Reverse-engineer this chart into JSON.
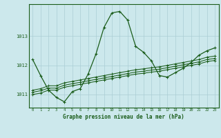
{
  "xlabel": "Graphe pression niveau de la mer (hPa)",
  "background_color": "#cce8ec",
  "grid_color": "#aacdd4",
  "line_color": "#1a5c1a",
  "x_data": [
    0,
    1,
    2,
    3,
    4,
    5,
    6,
    7,
    8,
    9,
    10,
    11,
    12,
    13,
    14,
    15,
    16,
    17,
    18,
    19,
    20,
    21,
    22,
    23
  ],
  "series1": [
    1012.2,
    1011.65,
    1011.15,
    1010.9,
    1010.75,
    1011.1,
    1011.2,
    1011.7,
    1012.4,
    1013.3,
    1013.8,
    1013.85,
    1013.55,
    1012.65,
    1012.45,
    1012.15,
    1011.65,
    1011.6,
    1011.75,
    1011.9,
    1012.1,
    1012.35,
    1012.5,
    1012.6
  ],
  "series2": [
    1011.15,
    1011.2,
    1011.3,
    1011.3,
    1011.4,
    1011.45,
    1011.5,
    1011.55,
    1011.6,
    1011.65,
    1011.7,
    1011.75,
    1011.8,
    1011.85,
    1011.88,
    1011.92,
    1011.95,
    1012.0,
    1012.05,
    1012.1,
    1012.15,
    1012.2,
    1012.28,
    1012.32
  ],
  "series3": [
    1011.08,
    1011.13,
    1011.22,
    1011.22,
    1011.32,
    1011.37,
    1011.42,
    1011.47,
    1011.52,
    1011.57,
    1011.62,
    1011.67,
    1011.72,
    1011.77,
    1011.8,
    1011.84,
    1011.87,
    1011.92,
    1011.97,
    1012.02,
    1012.07,
    1012.12,
    1012.2,
    1012.24
  ],
  "series4": [
    1011.0,
    1011.05,
    1011.15,
    1011.15,
    1011.25,
    1011.3,
    1011.35,
    1011.4,
    1011.45,
    1011.5,
    1011.55,
    1011.6,
    1011.65,
    1011.7,
    1011.73,
    1011.77,
    1011.8,
    1011.85,
    1011.9,
    1011.95,
    1012.0,
    1012.05,
    1012.13,
    1012.17
  ],
  "ylim": [
    1010.55,
    1014.1
  ],
  "yticks": [
    1011,
    1012,
    1013
  ],
  "xticks": [
    0,
    1,
    2,
    3,
    4,
    5,
    6,
    7,
    8,
    9,
    10,
    11,
    12,
    13,
    14,
    15,
    16,
    17,
    18,
    19,
    20,
    21,
    22,
    23
  ]
}
